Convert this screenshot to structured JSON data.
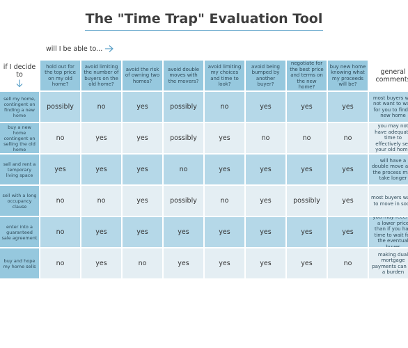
{
  "title": "The \"Time Trap\" Evaluation Tool",
  "able_to_label": "will I be able to...",
  "corner_label": "if I decide to",
  "comments_header": "general comments",
  "columns": [
    "hold out for the top price on my old home?",
    "avoid limiting the number of buyers on the old home?",
    "avoid the risk of owning two homes?",
    "avoid double moves with the movers?",
    "avoid limiting my choices and time to look?",
    "avoid being bumped by another buyer?",
    "negotiate for the best price and terms on the new home?",
    "buy new home knowing what my proceeds will be?"
  ],
  "rows": [
    {
      "label": "sell my home, contingent on finding a new home",
      "values": [
        "possibly",
        "no",
        "yes",
        "possibly",
        "no",
        "yes",
        "yes",
        "yes"
      ],
      "comment": "most buyers will not want to wait for you to find a new home"
    },
    {
      "label": "buy a new home contingent on selling the old home",
      "values": [
        "no",
        "yes",
        "yes",
        "possibly",
        "yes",
        "no",
        "no",
        "no"
      ],
      "comment": "you may not have adequate time to effectively sell your old home"
    },
    {
      "label": "sell and rent a temporary living space",
      "values": [
        "yes",
        "yes",
        "yes",
        "no",
        "yes",
        "yes",
        "yes",
        "yes"
      ],
      "comment": "will have a double move and the process may take longer"
    },
    {
      "label": "sell with a long occupancy clause",
      "values": [
        "no",
        "no",
        "yes",
        "possibly",
        "no",
        "yes",
        "possibly",
        "yes"
      ],
      "comment": "most buyers want to move in soon"
    },
    {
      "label": "enter into a guaranteed sale agreement",
      "values": [
        "no",
        "yes",
        "yes",
        "yes",
        "yes",
        "yes",
        "yes",
        "yes"
      ],
      "comment": "you may receive a lower price than if you had time to wait for the eventual buyer"
    },
    {
      "label": "buy and hope my home sells",
      "values": [
        "no",
        "yes",
        "no",
        "yes",
        "yes",
        "yes",
        "yes",
        "no"
      ],
      "comment": "making dual mortgage payments can be a burden"
    }
  ],
  "colors": {
    "header": "#96c8de",
    "cell_dark": "#b5d8e8",
    "cell_light": "#e4eef3",
    "accent": "#5aa0c8"
  },
  "icons": {
    "able_to_arrow": "arrow-right-icon",
    "corner_arrow": "arrow-down-icon"
  }
}
